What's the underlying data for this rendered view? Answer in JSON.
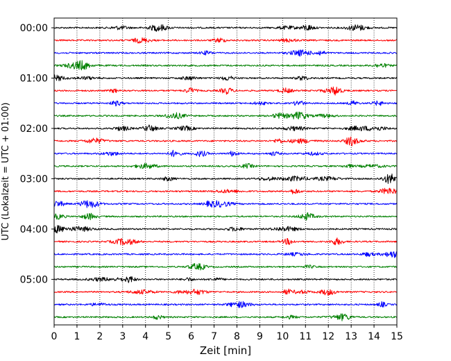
{
  "chart_data": {
    "type": "line",
    "title": "",
    "xlabel": "Zeit  [min]",
    "ylabel": "UTC (Lokalzeit = UTC + 01:00)",
    "xlim": [
      0,
      15
    ],
    "x_ticks": [
      "0",
      "1",
      "2",
      "3",
      "4",
      "5",
      "6",
      "7",
      "8",
      "9",
      "10",
      "11",
      "12",
      "13",
      "14",
      "15"
    ],
    "y_ticks": [
      "00:00",
      "01:00",
      "02:00",
      "03:00",
      "04:00",
      "05:00"
    ],
    "row_count": 24,
    "row_minutes": 15,
    "grid": "vertical dotted",
    "legend": "none",
    "series_colors": [
      "#000000",
      "#ff0000",
      "#0000ff",
      "#008000"
    ]
  }
}
